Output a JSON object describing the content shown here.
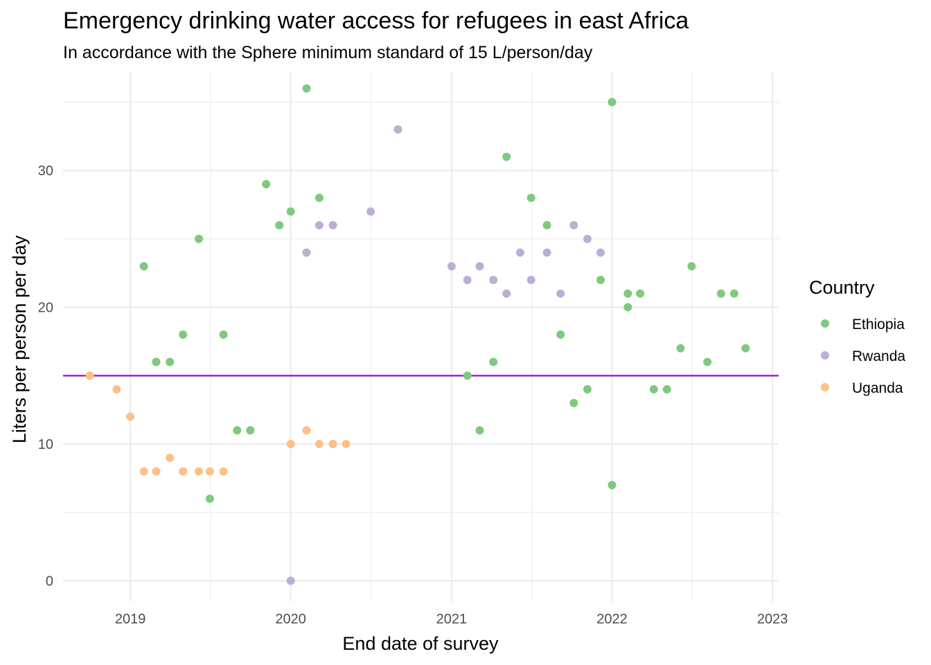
{
  "chart_data": {
    "type": "scatter",
    "title": "Emergency drinking water access for refugees in east Africa",
    "subtitle": "In accordance with the Sphere minimum standard of 15 L/person/day",
    "xlabel": "End date of survey",
    "ylabel": "Liters per person per day",
    "x_scale": "date",
    "xlim": [
      "2018-08-01",
      "2023-01-15"
    ],
    "ylim": [
      -1.5,
      37.2
    ],
    "x_ticks": [
      "2019-01-01",
      "2020-01-01",
      "2021-01-01",
      "2022-01-01",
      "2023-01-01"
    ],
    "x_tick_labels": [
      "2019",
      "2020",
      "2021",
      "2022",
      "2023"
    ],
    "y_ticks": [
      0,
      10,
      20,
      30
    ],
    "y_tick_labels": [
      "0",
      "10",
      "20",
      "30"
    ],
    "grid": true,
    "legend": {
      "title": "Country",
      "position": "right"
    },
    "reference_line": {
      "y": 15,
      "color": "#a02dd2"
    },
    "series": [
      {
        "name": "Ethiopia",
        "color": "#7fc97f",
        "points": [
          {
            "x": "2019-02-01",
            "y": 23
          },
          {
            "x": "2019-03-01",
            "y": 16
          },
          {
            "x": "2019-04-01",
            "y": 16
          },
          {
            "x": "2019-05-01",
            "y": 18
          },
          {
            "x": "2019-06-06",
            "y": 25
          },
          {
            "x": "2019-07-01",
            "y": 6
          },
          {
            "x": "2019-08-01",
            "y": 18
          },
          {
            "x": "2019-09-01",
            "y": 11
          },
          {
            "x": "2019-10-01",
            "y": 11
          },
          {
            "x": "2019-11-06",
            "y": 29
          },
          {
            "x": "2019-12-06",
            "y": 26
          },
          {
            "x": "2020-01-01",
            "y": 27
          },
          {
            "x": "2020-02-06",
            "y": 36
          },
          {
            "x": "2020-03-06",
            "y": 28
          },
          {
            "x": "2021-02-06",
            "y": 15
          },
          {
            "x": "2021-03-06",
            "y": 11
          },
          {
            "x": "2021-04-06",
            "y": 16
          },
          {
            "x": "2021-05-06",
            "y": 31
          },
          {
            "x": "2021-07-01",
            "y": 28
          },
          {
            "x": "2021-08-06",
            "y": 26
          },
          {
            "x": "2021-09-06",
            "y": 18
          },
          {
            "x": "2021-10-06",
            "y": 13
          },
          {
            "x": "2021-11-06",
            "y": 14
          },
          {
            "x": "2021-12-06",
            "y": 22
          },
          {
            "x": "2022-01-01",
            "y": 35
          },
          {
            "x": "2022-01-01",
            "y": 7
          },
          {
            "x": "2022-02-06",
            "y": 21
          },
          {
            "x": "2022-02-06",
            "y": 20
          },
          {
            "x": "2022-03-06",
            "y": 21
          },
          {
            "x": "2022-04-06",
            "y": 14
          },
          {
            "x": "2022-05-06",
            "y": 14
          },
          {
            "x": "2022-06-06",
            "y": 17
          },
          {
            "x": "2022-07-01",
            "y": 23
          },
          {
            "x": "2022-08-06",
            "y": 16
          },
          {
            "x": "2022-09-06",
            "y": 21
          },
          {
            "x": "2022-10-06",
            "y": 21
          },
          {
            "x": "2022-11-01",
            "y": 17
          }
        ]
      },
      {
        "name": "Rwanda",
        "color": "#beaed4",
        "points": [
          {
            "x": "2020-01-01",
            "y": 0
          },
          {
            "x": "2020-02-06",
            "y": 24
          },
          {
            "x": "2020-03-06",
            "y": 26
          },
          {
            "x": "2020-04-06",
            "y": 26
          },
          {
            "x": "2020-07-01",
            "y": 27
          },
          {
            "x": "2020-09-01",
            "y": 33
          },
          {
            "x": "2021-01-01",
            "y": 23
          },
          {
            "x": "2021-02-06",
            "y": 22
          },
          {
            "x": "2021-03-06",
            "y": 23
          },
          {
            "x": "2021-04-06",
            "y": 22
          },
          {
            "x": "2021-05-06",
            "y": 21
          },
          {
            "x": "2021-06-06",
            "y": 24
          },
          {
            "x": "2021-07-01",
            "y": 22
          },
          {
            "x": "2021-08-06",
            "y": 24
          },
          {
            "x": "2021-09-06",
            "y": 21
          },
          {
            "x": "2021-10-06",
            "y": 26
          },
          {
            "x": "2021-11-06",
            "y": 25
          },
          {
            "x": "2021-12-06",
            "y": 24
          }
        ]
      },
      {
        "name": "Uganda",
        "color": "#fdc086",
        "points": [
          {
            "x": "2018-10-01",
            "y": 15
          },
          {
            "x": "2018-12-01",
            "y": 14
          },
          {
            "x": "2019-01-01",
            "y": 12
          },
          {
            "x": "2019-02-01",
            "y": 8
          },
          {
            "x": "2019-03-01",
            "y": 8
          },
          {
            "x": "2019-04-01",
            "y": 9
          },
          {
            "x": "2019-05-01",
            "y": 8
          },
          {
            "x": "2019-06-06",
            "y": 8
          },
          {
            "x": "2019-07-01",
            "y": 8
          },
          {
            "x": "2019-08-01",
            "y": 8
          },
          {
            "x": "2020-01-01",
            "y": 10
          },
          {
            "x": "2020-02-06",
            "y": 11
          },
          {
            "x": "2020-03-06",
            "y": 10
          },
          {
            "x": "2020-04-06",
            "y": 10
          },
          {
            "x": "2020-05-06",
            "y": 10
          }
        ]
      }
    ]
  }
}
